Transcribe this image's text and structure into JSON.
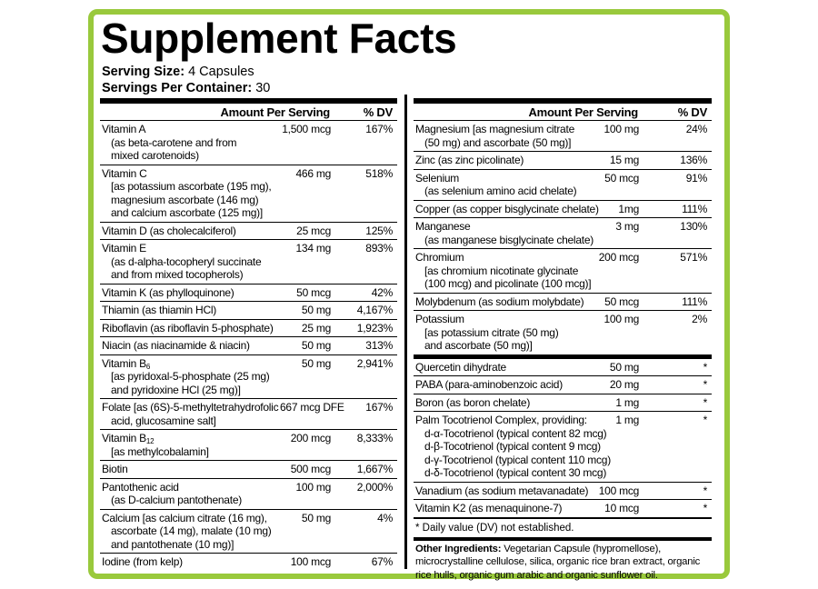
{
  "title": "Supplement Facts",
  "serving_size": {
    "label": "Serving Size:",
    "value": "4 Capsules"
  },
  "servings_per_container": {
    "label": "Servings Per Container:",
    "value": "30"
  },
  "left": {
    "headers": [
      "Amount Per Serving",
      "% DV"
    ],
    "rows": [
      {
        "name": [
          "Vitamin A",
          "(as beta-carotene and from",
          "mixed carotenoids)"
        ],
        "amount": "1,500 mcg",
        "dv": "167%"
      },
      {
        "name": [
          "Vitamin C",
          "[as potassium ascorbate (195 mg),",
          "magnesium ascorbate (146 mg)",
          "and calcium ascorbate (125 mg)]"
        ],
        "amount": "466 mg",
        "dv": "518%"
      },
      {
        "name": [
          "Vitamin D (as cholecalciferol)"
        ],
        "amount": "25 mcg",
        "dv": "125%"
      },
      {
        "name": [
          "Vitamin E",
          "(as d-alpha-tocopheryl succinate",
          "and from mixed tocopherols)"
        ],
        "amount": "134 mg",
        "dv": "893%"
      },
      {
        "name": [
          "Vitamin K (as phylloquinone)"
        ],
        "amount": "50 mcg",
        "dv": "42%"
      },
      {
        "name": [
          "Thiamin (as thiamin HCl)"
        ],
        "amount": "50 mg",
        "dv": "4,167%"
      },
      {
        "name": [
          "Riboflavin (as riboflavin 5-phosphate)"
        ],
        "amount": "25 mg",
        "dv": "1,923%"
      },
      {
        "name": [
          "Niacin (as niacinamide & niacin)"
        ],
        "amount": "50 mg",
        "dv": "313%"
      },
      {
        "name": [
          "Vitamin B",
          "[as pyridoxal-5-phosphate (25 mg)",
          "and pyridoxine HCl (25 mg)]"
        ],
        "sub": "6",
        "amount": "50 mg",
        "dv": "2,941%"
      },
      {
        "name": [
          "Folate [as (6S)-5-methyltetrahydrofolic",
          "acid, glucosamine salt]"
        ],
        "amount": "667 mcg DFE",
        "dv": "167%"
      },
      {
        "name": [
          "Vitamin B",
          "[as methylcobalamin]"
        ],
        "sub": "12",
        "amount": "200 mcg",
        "dv": "8,333%"
      },
      {
        "name": [
          "Biotin"
        ],
        "amount": "500 mcg",
        "dv": "1,667%"
      },
      {
        "name": [
          "Pantothenic acid",
          "(as D-calcium pantothenate)"
        ],
        "amount": "100 mg",
        "dv": "2,000%"
      },
      {
        "name": [
          "Calcium [as calcium citrate (16 mg),",
          "ascorbate (14 mg), malate (10 mg)",
          "and pantothenate (10 mg)]"
        ],
        "amount": "50 mg",
        "dv": "4%"
      },
      {
        "name": [
          "Iodine (from kelp)"
        ],
        "amount": "100 mcg",
        "dv": "67%"
      }
    ]
  },
  "right": {
    "headers": [
      "Amount Per Serving",
      "% DV"
    ],
    "rows": [
      {
        "name": [
          "Magnesium [as magnesium citrate",
          "(50 mg) and ascorbate (50 mg)]"
        ],
        "amount": "100 mg",
        "dv": "24%"
      },
      {
        "name": [
          "Zinc (as zinc picolinate)"
        ],
        "amount": "15 mg",
        "dv": "136%"
      },
      {
        "name": [
          "Selenium",
          "(as selenium amino acid chelate)"
        ],
        "amount": "50 mcg",
        "dv": "91%"
      },
      {
        "name": [
          "Copper (as copper bisglycinate chelate)"
        ],
        "amount": "1mg",
        "dv": "111%"
      },
      {
        "name": [
          "Manganese",
          "(as manganese bisglycinate chelate)"
        ],
        "amount": "3 mg",
        "dv": "130%"
      },
      {
        "name": [
          "Chromium",
          "[as chromium nicotinate glycinate",
          "(100 mcg) and picolinate (100 mcg)]"
        ],
        "amount": "200 mcg",
        "dv": "571%"
      },
      {
        "name": [
          "Molybdenum (as sodium molybdate)"
        ],
        "amount": "50 mcg",
        "dv": "111%"
      },
      {
        "name": [
          "Potassium",
          "[as potassium citrate (50 mg)",
          "and ascorbate (50 mg)]"
        ],
        "amount": "100 mg",
        "dv": "2%"
      }
    ],
    "other_rows": [
      {
        "name": [
          "Quercetin dihydrate"
        ],
        "amount": "50 mg",
        "dv": "*"
      },
      {
        "name": [
          "PABA (para-aminobenzoic acid)"
        ],
        "amount": "20 mg",
        "dv": "*"
      },
      {
        "name": [
          "Boron (as boron chelate)"
        ],
        "amount": "1 mg",
        "dv": "*"
      },
      {
        "name": [
          "Palm Tocotrienol Complex, providing:",
          "d-α-Tocotrienol (typical content 82 mcg)",
          "d-β-Tocotrienol (typical content 9 mcg)",
          "d-γ-Tocotrienol (typical content 110 mcg)",
          "d-δ-Tocotrienol (typical content 30 mcg)"
        ],
        "amount": "1 mg",
        "dv": "*"
      },
      {
        "name": [
          "Vanadium (as sodium metavanadate)"
        ],
        "amount": "100 mcg",
        "dv": "*"
      },
      {
        "name": [
          "Vitamin K2 (as menaquinone-7)"
        ],
        "amount": "10 mcg",
        "dv": "*"
      }
    ],
    "footnote": "* Daily value (DV) not established.",
    "other_ingredients": {
      "label": "Other Ingredients:",
      "text": "Vegetarian Capsule (hypromellose), microcrystalline cellulose, silica, organic rice bran extract, organic rice hulls, organic gum arabic and organic sunflower oil."
    }
  }
}
